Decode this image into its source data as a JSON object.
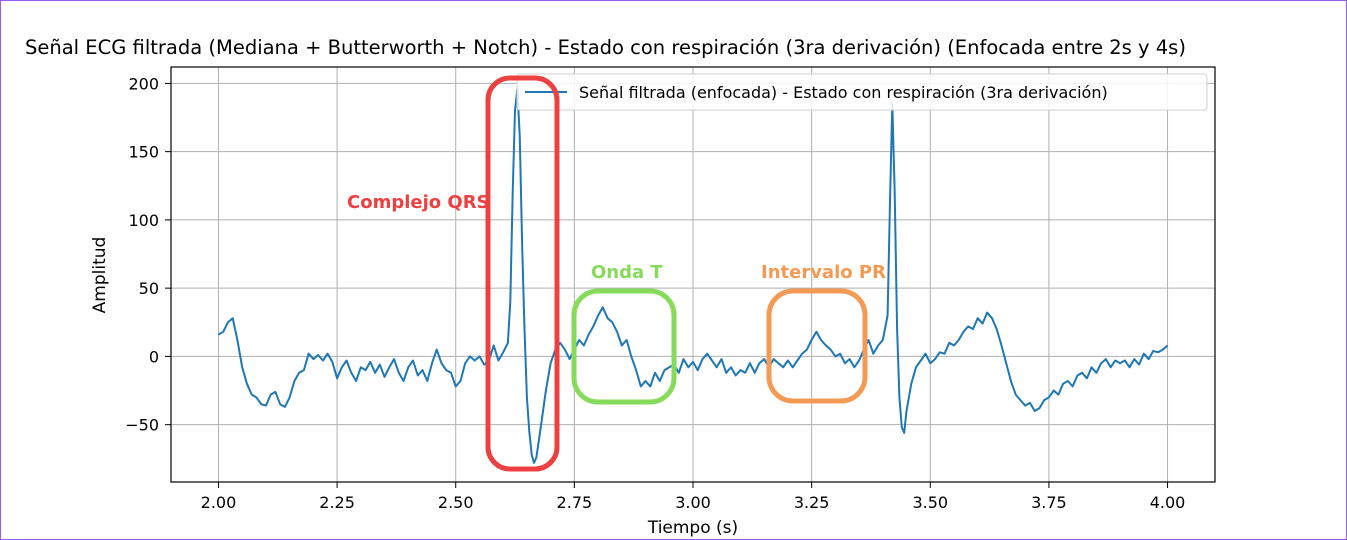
{
  "chart_data": {
    "type": "line",
    "title": "Señal ECG filtrada (Mediana + Butterworth + Notch) - Estado con respiración (3ra derivación) (Enfocada entre 2s y 4s)",
    "xlabel": "Tiempo (s)",
    "ylabel": "Amplitud",
    "xlim": [
      1.9,
      4.1
    ],
    "ylim": [
      -92,
      212
    ],
    "x_ticks": [
      2.0,
      2.25,
      2.5,
      2.75,
      3.0,
      3.25,
      3.5,
      3.75,
      4.0
    ],
    "x_tick_labels": [
      "2.00",
      "2.25",
      "2.50",
      "2.75",
      "3.00",
      "3.25",
      "3.50",
      "3.75",
      "4.00"
    ],
    "y_ticks": [
      200,
      150,
      100,
      50,
      0,
      -50
    ],
    "y_tick_labels": [
      "200",
      "150",
      "100",
      "50",
      "0",
      "−50"
    ],
    "grid": true,
    "legend_position": "top-right",
    "series": [
      {
        "name": "Señal filtrada (enfocada) - Estado con respiración (3ra derivación)",
        "color": "#1f77b4",
        "points": [
          [
            2.0,
            16
          ],
          [
            2.01,
            18
          ],
          [
            2.02,
            25
          ],
          [
            2.03,
            28
          ],
          [
            2.04,
            12
          ],
          [
            2.05,
            -8
          ],
          [
            2.06,
            -20
          ],
          [
            2.07,
            -28
          ],
          [
            2.08,
            -30
          ],
          [
            2.09,
            -35
          ],
          [
            2.1,
            -36
          ],
          [
            2.11,
            -28
          ],
          [
            2.12,
            -26
          ],
          [
            2.13,
            -35
          ],
          [
            2.14,
            -37
          ],
          [
            2.15,
            -30
          ],
          [
            2.16,
            -18
          ],
          [
            2.17,
            -12
          ],
          [
            2.18,
            -10
          ],
          [
            2.19,
            2
          ],
          [
            2.2,
            -2
          ],
          [
            2.21,
            1
          ],
          [
            2.22,
            -3
          ],
          [
            2.23,
            2
          ],
          [
            2.24,
            -4
          ],
          [
            2.25,
            -16
          ],
          [
            2.26,
            -8
          ],
          [
            2.27,
            -3
          ],
          [
            2.28,
            -12
          ],
          [
            2.29,
            -18
          ],
          [
            2.3,
            -8
          ],
          [
            2.31,
            -10
          ],
          [
            2.32,
            -4
          ],
          [
            2.33,
            -12
          ],
          [
            2.34,
            -6
          ],
          [
            2.35,
            -15
          ],
          [
            2.36,
            -8
          ],
          [
            2.37,
            -2
          ],
          [
            2.38,
            -12
          ],
          [
            2.39,
            -18
          ],
          [
            2.4,
            -8
          ],
          [
            2.41,
            -3
          ],
          [
            2.42,
            -14
          ],
          [
            2.43,
            -10
          ],
          [
            2.44,
            -18
          ],
          [
            2.45,
            -5
          ],
          [
            2.46,
            5
          ],
          [
            2.47,
            -5
          ],
          [
            2.48,
            -10
          ],
          [
            2.49,
            -12
          ],
          [
            2.5,
            -22
          ],
          [
            2.51,
            -18
          ],
          [
            2.52,
            -5
          ],
          [
            2.53,
            0
          ],
          [
            2.54,
            -3
          ],
          [
            2.55,
            0
          ],
          [
            2.56,
            -6
          ],
          [
            2.57,
            -3
          ],
          [
            2.58,
            8
          ],
          [
            2.59,
            -3
          ],
          [
            2.6,
            3
          ],
          [
            2.61,
            10
          ],
          [
            2.615,
            40
          ],
          [
            2.62,
            120
          ],
          [
            2.625,
            180
          ],
          [
            2.63,
            196
          ],
          [
            2.635,
            160
          ],
          [
            2.64,
            80
          ],
          [
            2.645,
            20
          ],
          [
            2.65,
            -30
          ],
          [
            2.655,
            -55
          ],
          [
            2.66,
            -72
          ],
          [
            2.665,
            -78
          ],
          [
            2.67,
            -74
          ],
          [
            2.68,
            -50
          ],
          [
            2.69,
            -25
          ],
          [
            2.7,
            -5
          ],
          [
            2.71,
            5
          ],
          [
            2.72,
            10
          ],
          [
            2.73,
            5
          ],
          [
            2.74,
            -2
          ],
          [
            2.75,
            5
          ],
          [
            2.76,
            12
          ],
          [
            2.77,
            8
          ],
          [
            2.78,
            16
          ],
          [
            2.79,
            22
          ],
          [
            2.8,
            30
          ],
          [
            2.81,
            36
          ],
          [
            2.82,
            28
          ],
          [
            2.83,
            25
          ],
          [
            2.84,
            18
          ],
          [
            2.85,
            8
          ],
          [
            2.86,
            12
          ],
          [
            2.87,
            0
          ],
          [
            2.88,
            -10
          ],
          [
            2.89,
            -22
          ],
          [
            2.9,
            -18
          ],
          [
            2.91,
            -22
          ],
          [
            2.92,
            -12
          ],
          [
            2.93,
            -18
          ],
          [
            2.94,
            -10
          ],
          [
            2.95,
            -8
          ],
          [
            2.96,
            -6
          ],
          [
            2.97,
            -12
          ],
          [
            2.98,
            -2
          ],
          [
            2.99,
            -8
          ],
          [
            3.0,
            -4
          ],
          [
            3.01,
            -10
          ],
          [
            3.02,
            -2
          ],
          [
            3.03,
            2
          ],
          [
            3.04,
            -3
          ],
          [
            3.05,
            -8
          ],
          [
            3.06,
            -2
          ],
          [
            3.07,
            -12
          ],
          [
            3.08,
            -8
          ],
          [
            3.09,
            -14
          ],
          [
            3.1,
            -10
          ],
          [
            3.11,
            -12
          ],
          [
            3.12,
            -5
          ],
          [
            3.13,
            -12
          ],
          [
            3.14,
            -5
          ],
          [
            3.15,
            -2
          ],
          [
            3.16,
            -8
          ],
          [
            3.17,
            -2
          ],
          [
            3.18,
            -5
          ],
          [
            3.19,
            -8
          ],
          [
            3.2,
            -3
          ],
          [
            3.21,
            -8
          ],
          [
            3.22,
            -3
          ],
          [
            3.23,
            2
          ],
          [
            3.24,
            5
          ],
          [
            3.25,
            12
          ],
          [
            3.26,
            18
          ],
          [
            3.27,
            12
          ],
          [
            3.28,
            8
          ],
          [
            3.29,
            5
          ],
          [
            3.3,
            0
          ],
          [
            3.31,
            2
          ],
          [
            3.32,
            -5
          ],
          [
            3.33,
            -2
          ],
          [
            3.34,
            -8
          ],
          [
            3.35,
            -3
          ],
          [
            3.36,
            5
          ],
          [
            3.37,
            12
          ],
          [
            3.38,
            2
          ],
          [
            3.39,
            8
          ],
          [
            3.4,
            12
          ],
          [
            3.41,
            30
          ],
          [
            3.415,
            110
          ],
          [
            3.42,
            185
          ],
          [
            3.425,
            120
          ],
          [
            3.43,
            20
          ],
          [
            3.435,
            -30
          ],
          [
            3.44,
            -52
          ],
          [
            3.445,
            -56
          ],
          [
            3.45,
            -40
          ],
          [
            3.46,
            -20
          ],
          [
            3.47,
            -8
          ],
          [
            3.48,
            -3
          ],
          [
            3.49,
            2
          ],
          [
            3.5,
            -5
          ],
          [
            3.51,
            -2
          ],
          [
            3.52,
            3
          ],
          [
            3.53,
            2
          ],
          [
            3.54,
            10
          ],
          [
            3.55,
            8
          ],
          [
            3.56,
            12
          ],
          [
            3.57,
            18
          ],
          [
            3.58,
            22
          ],
          [
            3.59,
            20
          ],
          [
            3.6,
            28
          ],
          [
            3.61,
            24
          ],
          [
            3.62,
            32
          ],
          [
            3.63,
            28
          ],
          [
            3.64,
            20
          ],
          [
            3.65,
            8
          ],
          [
            3.66,
            -5
          ],
          [
            3.67,
            -18
          ],
          [
            3.68,
            -28
          ],
          [
            3.69,
            -32
          ],
          [
            3.7,
            -36
          ],
          [
            3.71,
            -34
          ],
          [
            3.72,
            -40
          ],
          [
            3.73,
            -38
          ],
          [
            3.74,
            -32
          ],
          [
            3.75,
            -30
          ],
          [
            3.76,
            -25
          ],
          [
            3.77,
            -28
          ],
          [
            3.78,
            -20
          ],
          [
            3.79,
            -18
          ],
          [
            3.8,
            -22
          ],
          [
            3.81,
            -14
          ],
          [
            3.82,
            -12
          ],
          [
            3.83,
            -16
          ],
          [
            3.84,
            -8
          ],
          [
            3.85,
            -12
          ],
          [
            3.86,
            -5
          ],
          [
            3.87,
            -2
          ],
          [
            3.88,
            -8
          ],
          [
            3.89,
            -3
          ],
          [
            3.9,
            -5
          ],
          [
            3.91,
            -3
          ],
          [
            3.92,
            -8
          ],
          [
            3.93,
            -2
          ],
          [
            3.94,
            -6
          ],
          [
            3.95,
            2
          ],
          [
            3.96,
            -2
          ],
          [
            3.97,
            4
          ],
          [
            3.98,
            3
          ],
          [
            3.99,
            5
          ],
          [
            4.0,
            8
          ]
        ]
      }
    ]
  },
  "annotations": [
    {
      "label": "Complejo QRS",
      "color": "#ee4040"
    },
    {
      "label": "Onda T",
      "color": "#86dc5a"
    },
    {
      "label": "Intervalo PR",
      "color": "#f59a55"
    }
  ]
}
